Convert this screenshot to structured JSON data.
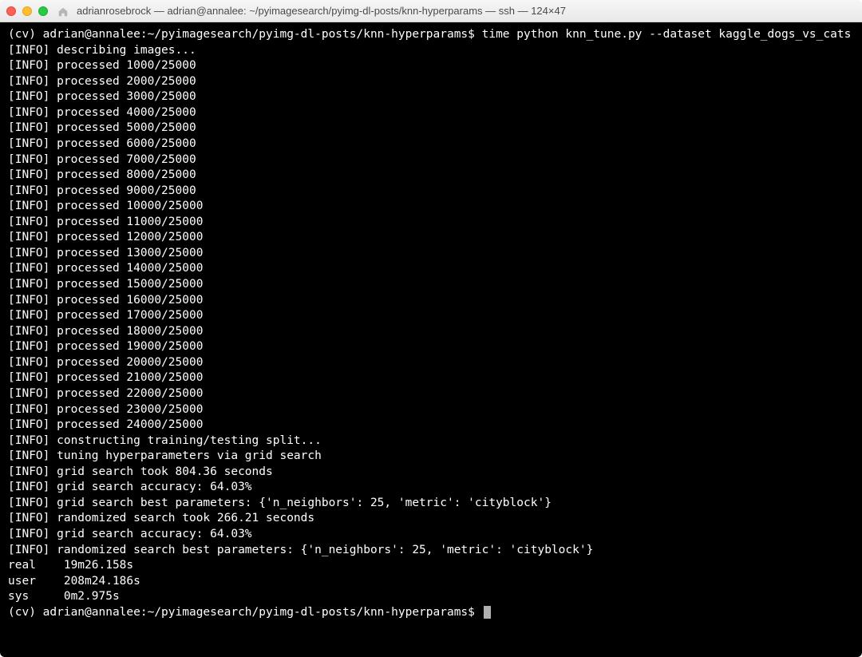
{
  "window": {
    "title": "adrianrosebrock — adrian@annalee: ~/pyimagesearch/pyimg-dl-posts/knn-hyperparams — ssh — 124×47",
    "background_color": "#000000",
    "text_color": "#ffffff",
    "font_size": 14.5,
    "traffic_lights": {
      "red": "#ff5f57",
      "yellow": "#ffbd2e",
      "green": "#28ca42"
    }
  },
  "terminal": {
    "prompt": "(cv) adrian@annalee:~/pyimagesearch/pyimg-dl-posts/knn-hyperparams$",
    "command": "time python knn_tune.py --dataset kaggle_dogs_vs_cats",
    "info_prefix": "[INFO]",
    "describing_line": "describing images...",
    "processed_total": "25000",
    "processed_values": [
      "1000",
      "2000",
      "3000",
      "4000",
      "5000",
      "6000",
      "7000",
      "8000",
      "9000",
      "10000",
      "11000",
      "12000",
      "13000",
      "14000",
      "15000",
      "16000",
      "17000",
      "18000",
      "19000",
      "20000",
      "21000",
      "22000",
      "23000",
      "24000"
    ],
    "tail_lines": [
      "constructing training/testing split...",
      "tuning hyperparameters via grid search",
      "grid search took 804.36 seconds",
      "grid search accuracy: 64.03%",
      "grid search best parameters: {'n_neighbors': 25, 'metric': 'cityblock'}",
      "randomized search took 266.21 seconds",
      "grid search accuracy: 64.03%",
      "randomized search best parameters: {'n_neighbors': 25, 'metric': 'cityblock'}"
    ],
    "timing": {
      "real": "19m26.158s",
      "user": "208m24.186s",
      "sys": "0m2.975s"
    }
  }
}
